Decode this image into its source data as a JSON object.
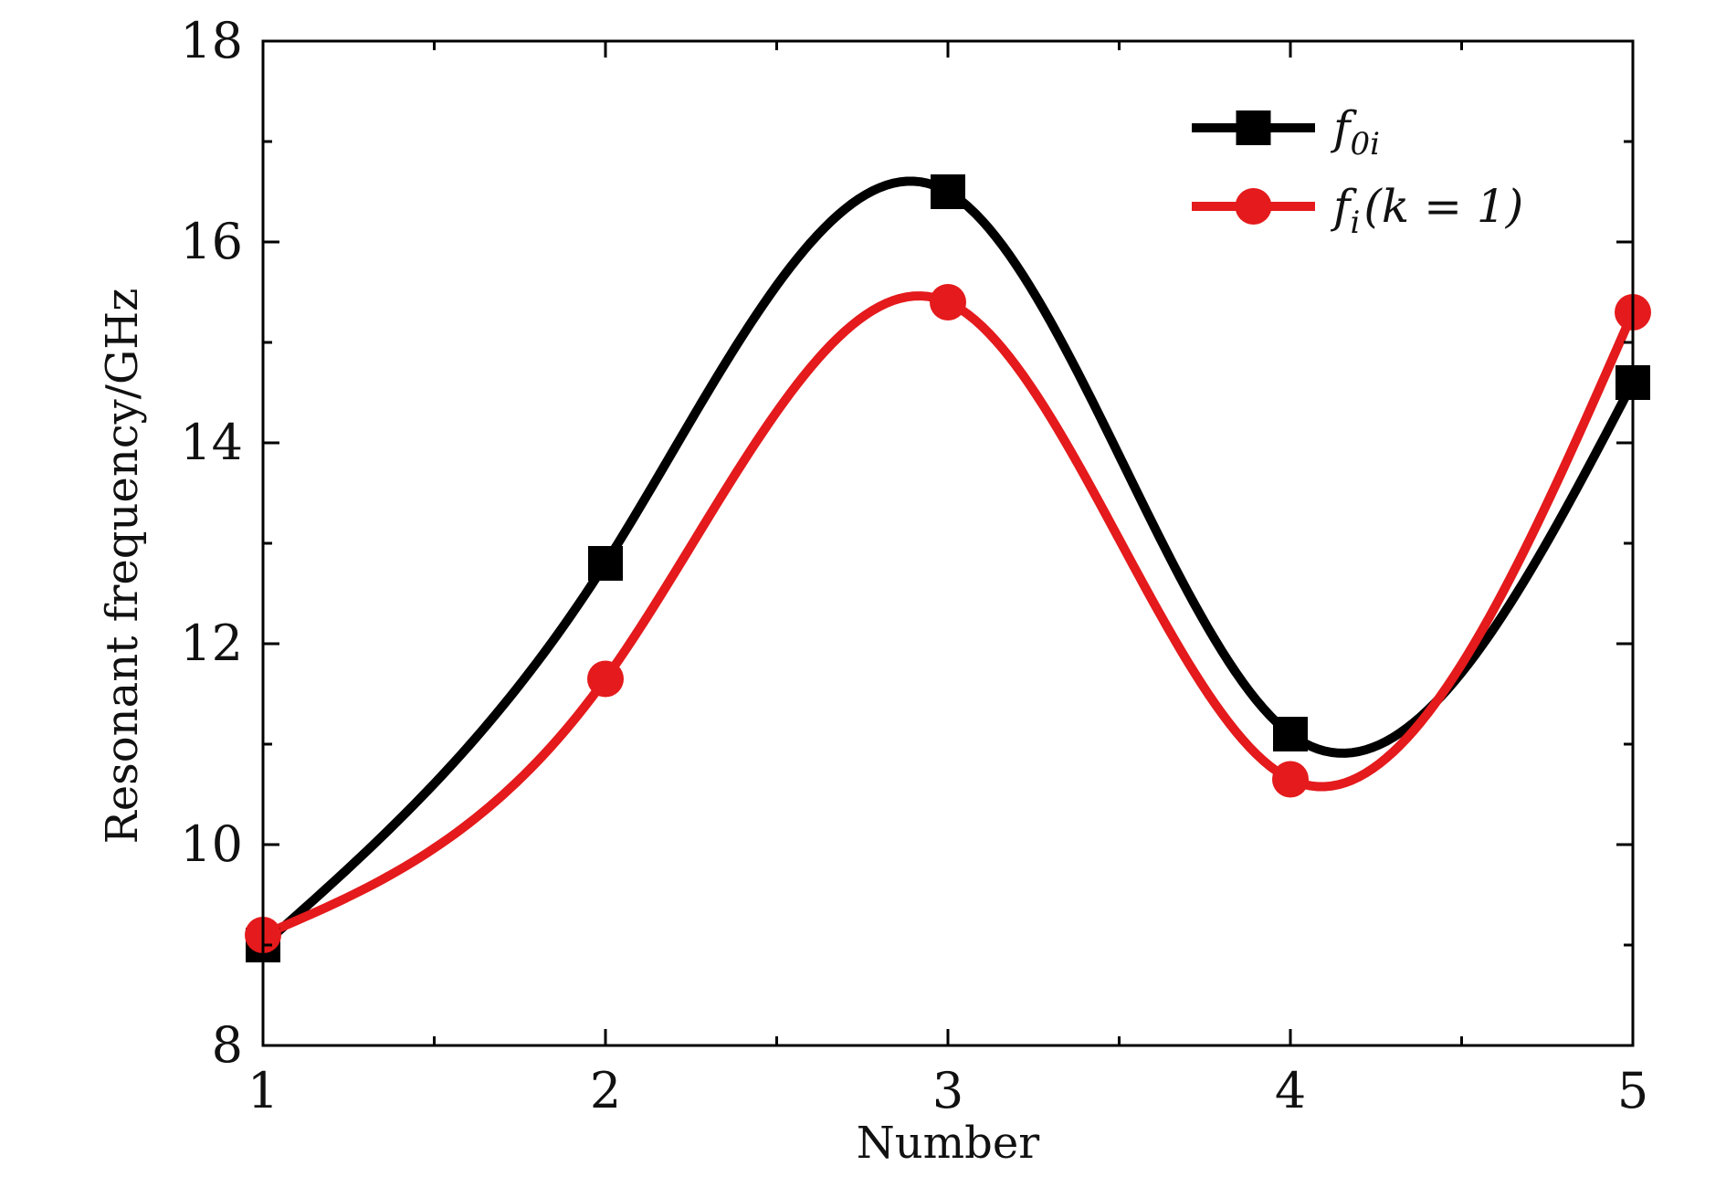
{
  "chart_data": {
    "type": "line",
    "title": "",
    "xlabel": "Number",
    "ylabel": "Resonant frequency/GHz",
    "xlim": [
      1,
      5
    ],
    "ylim": [
      8,
      18
    ],
    "x_ticks": [
      "1",
      "2",
      "3",
      "4",
      "5"
    ],
    "y_ticks": [
      "8",
      "10",
      "12",
      "14",
      "16",
      "18"
    ],
    "x_minor_ticks": [
      1.5,
      2.5,
      3.5,
      4.5
    ],
    "y_minor_ticks": [
      9,
      11,
      13,
      15,
      17
    ],
    "grid": false,
    "legend_position": "top-right",
    "series": [
      {
        "name": "f0i",
        "legend_main": "f",
        "legend_sub": "0i",
        "color": "#000000",
        "marker": "square",
        "x": [
          1,
          2,
          3,
          4,
          5
        ],
        "y": [
          9.0,
          12.8,
          16.5,
          11.1,
          14.6
        ]
      },
      {
        "name": "fi(k = 1)",
        "legend_main": "f",
        "legend_sub": "i",
        "legend_tail": "(k = 1)",
        "color": "#e41a1c",
        "marker": "circle",
        "x": [
          1,
          2,
          3,
          4,
          5
        ],
        "y": [
          9.1,
          11.65,
          15.4,
          10.65,
          15.3
        ]
      }
    ]
  }
}
